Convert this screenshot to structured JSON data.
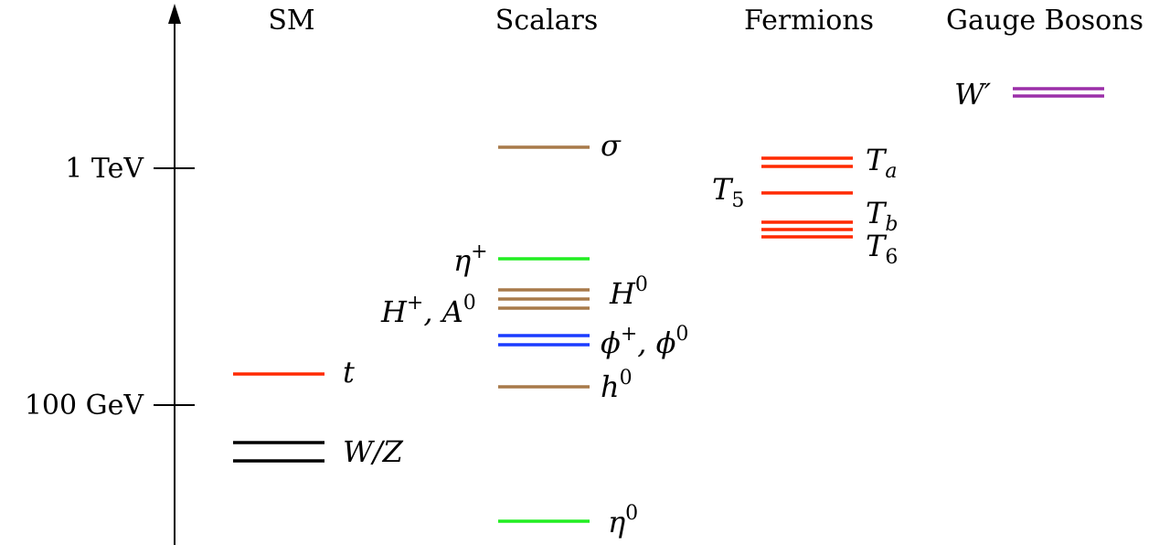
{
  "columns": {
    "sm": "SM",
    "scalars": "Scalars",
    "fermions": "Fermions",
    "gauge": "Gauge Bosons"
  },
  "axis": {
    "ticks": [
      {
        "label": "1 TeV",
        "gev": 1000
      },
      {
        "label": "100 GeV",
        "gev": 100
      }
    ]
  },
  "colors": {
    "black": "#000000",
    "red": "#ff2a00",
    "green": "#22ee22",
    "brown": "#a87a4a",
    "blue": "#1b3cff",
    "purple": "#9b2fa8"
  },
  "states": {
    "t": "t",
    "wz": "W/Z",
    "sigma": "σ",
    "eta_plus": "η",
    "plus": "+",
    "hpm_a0": "H",
    "a0_sep": ", A",
    "zero": "0",
    "h0_heavy": "H",
    "phi": "ϕ",
    "phi_sep": ", ϕ",
    "h0_light": "h",
    "eta_zero": "η",
    "ta": "T",
    "ta_sub": "a",
    "t5": "T",
    "t5_sub": "5",
    "tb": "T",
    "tb_sub": "b",
    "t6": "T",
    "t6_sub": "6",
    "wprime": "W′"
  }
}
